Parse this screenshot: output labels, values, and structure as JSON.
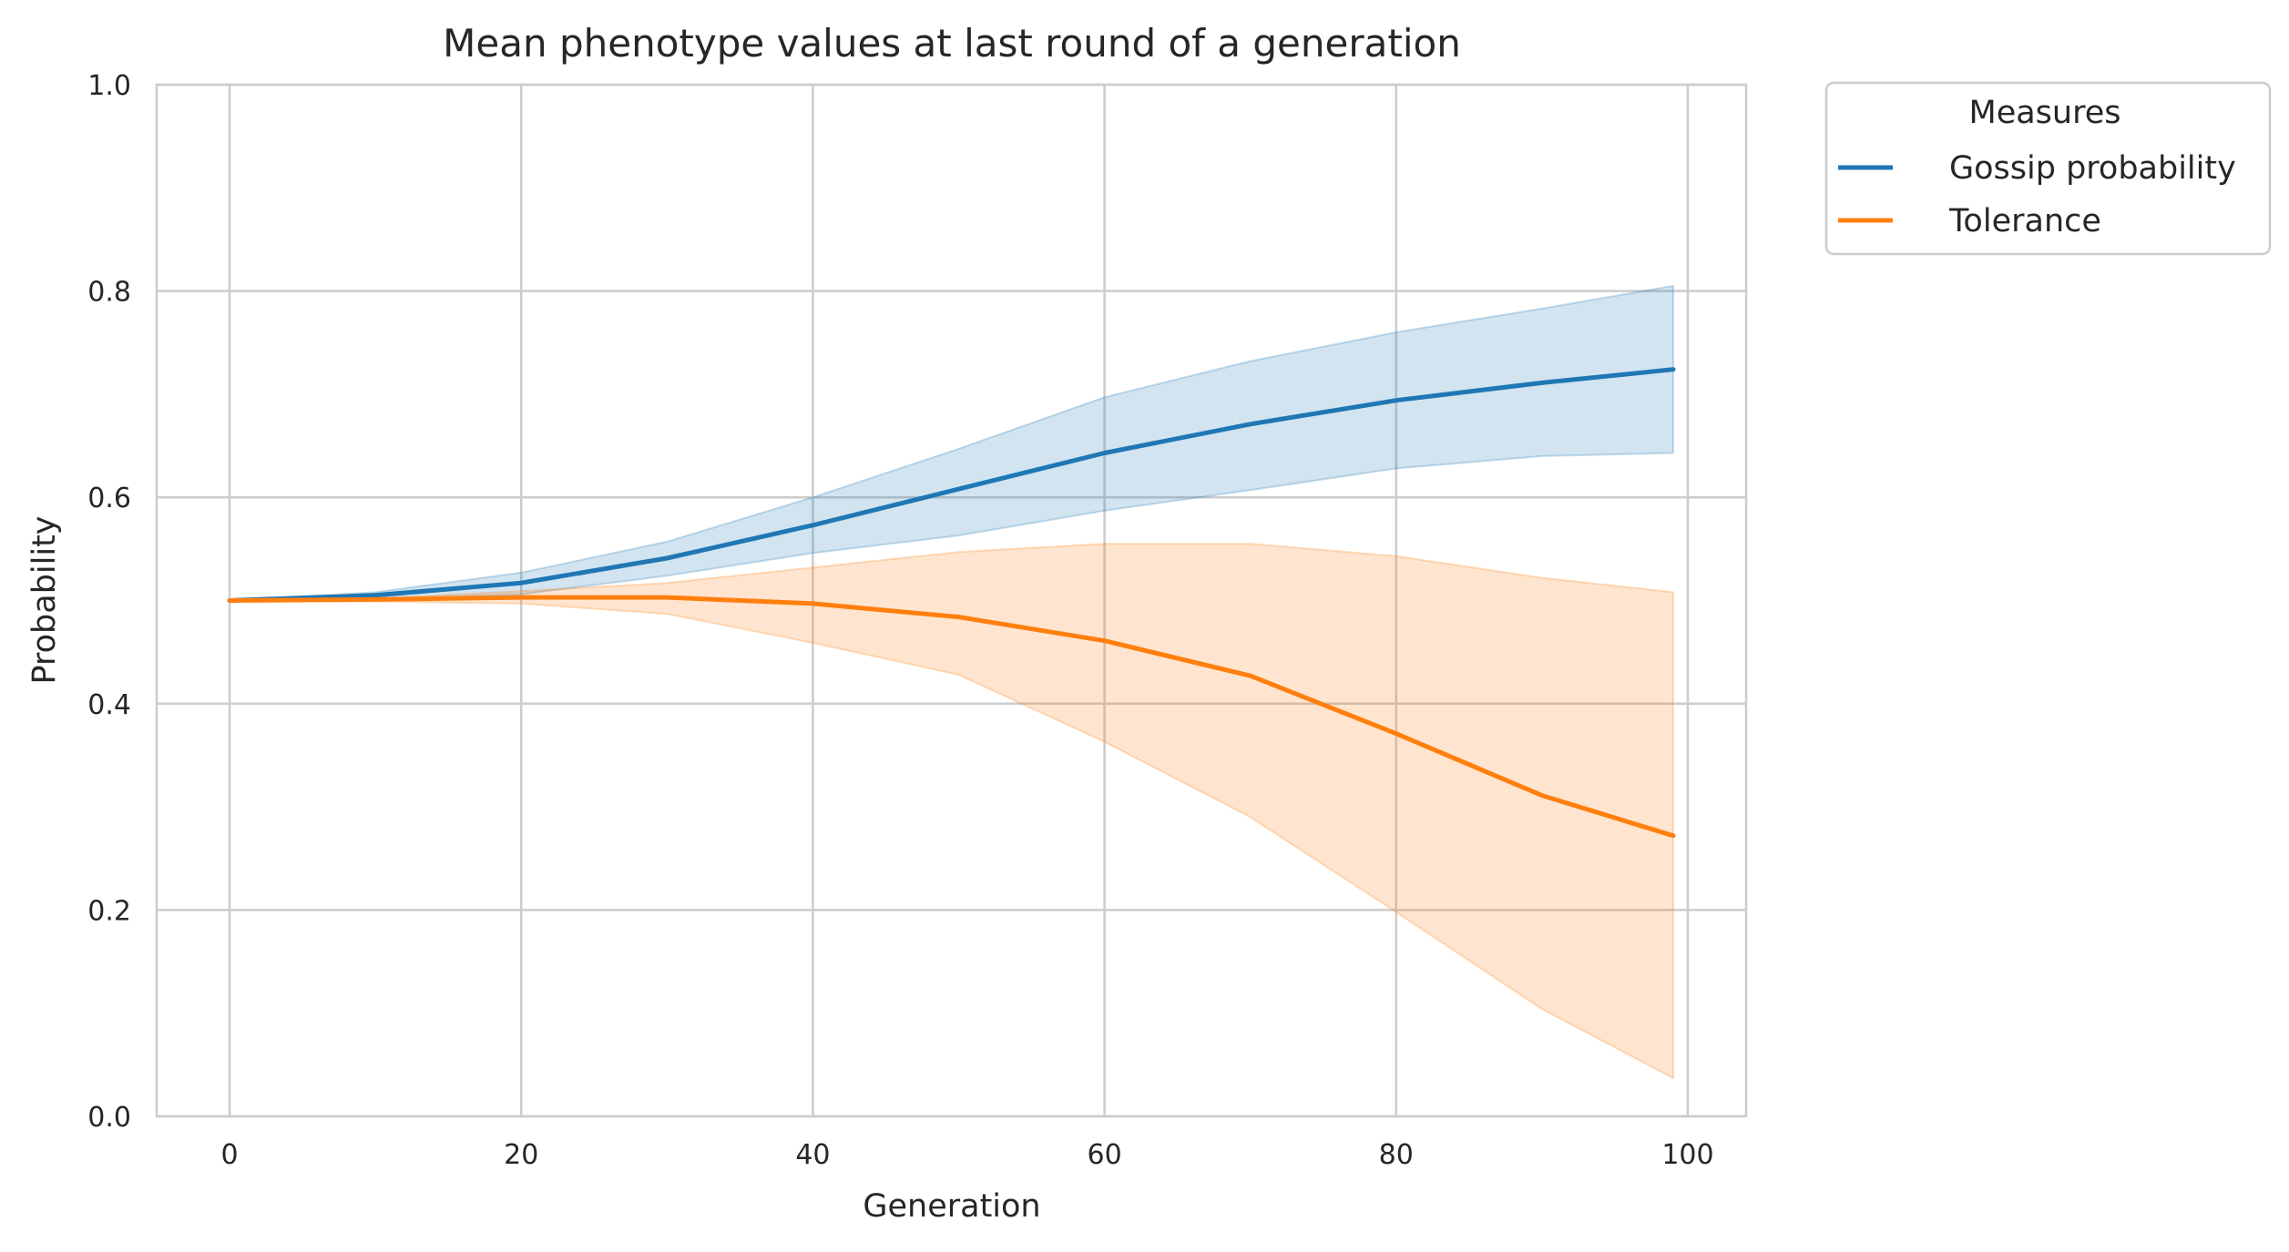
{
  "chart_data": {
    "type": "line",
    "title": "Mean phenotype values at last round of a generation",
    "xlabel": "Generation",
    "ylabel": "Probability",
    "xlim": [
      -5,
      104
    ],
    "ylim": [
      0.0,
      1.0
    ],
    "xticks": [
      0,
      20,
      40,
      60,
      80,
      100
    ],
    "yticks": [
      0.0,
      0.2,
      0.4,
      0.6,
      0.8,
      1.0
    ],
    "xtick_labels": [
      "0",
      "20",
      "40",
      "60",
      "80",
      "100"
    ],
    "ytick_labels": [
      "0.0",
      "0.2",
      "0.4",
      "0.6",
      "0.8",
      "1.0"
    ],
    "grid": true,
    "legend": {
      "title": "Measures",
      "placement": "outside-upper-right"
    },
    "x": [
      0,
      10,
      20,
      30,
      40,
      50,
      60,
      70,
      80,
      90,
      99
    ],
    "series": [
      {
        "name": "Gossip probability",
        "color": "#1f77b4",
        "values": [
          0.5,
          0.505,
          0.517,
          0.541,
          0.573,
          0.608,
          0.643,
          0.671,
          0.694,
          0.711,
          0.724
        ],
        "band_lower": [
          0.5,
          0.501,
          0.506,
          0.524,
          0.546,
          0.563,
          0.587,
          0.607,
          0.628,
          0.64,
          0.643
        ],
        "band_upper": [
          0.5,
          0.508,
          0.527,
          0.557,
          0.6,
          0.647,
          0.697,
          0.732,
          0.76,
          0.783,
          0.805
        ]
      },
      {
        "name": "Tolerance",
        "color": "#ff7f0e",
        "values": [
          0.5,
          0.501,
          0.503,
          0.503,
          0.497,
          0.484,
          0.461,
          0.427,
          0.371,
          0.311,
          0.272
        ],
        "band_lower": [
          0.5,
          0.499,
          0.497,
          0.487,
          0.459,
          0.428,
          0.363,
          0.29,
          0.198,
          0.104,
          0.037
        ],
        "band_upper": [
          0.5,
          0.502,
          0.509,
          0.517,
          0.532,
          0.547,
          0.555,
          0.555,
          0.543,
          0.522,
          0.508
        ]
      }
    ]
  }
}
